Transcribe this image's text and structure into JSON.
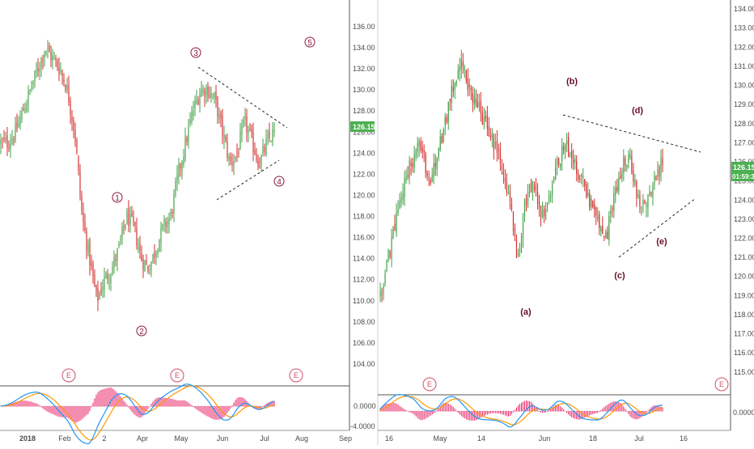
{
  "chart_data": [
    {
      "type": "candlestick",
      "title": "",
      "timeframe": "daily",
      "x_axis_labels": [
        "2018",
        "Feb",
        "2",
        "Apr",
        "May",
        "Jun",
        "Jul",
        "Aug",
        "Sep"
      ],
      "y_axis_labels": [
        "136.00",
        "134.00",
        "132.00",
        "130.00",
        "128.00",
        "126.00",
        "124.00",
        "122.00",
        "120.00",
        "118.00",
        "116.00",
        "114.00",
        "112.00",
        "110.00",
        "108.00",
        "106.00",
        "104.00"
      ],
      "ylim": [
        103,
        137.3
      ],
      "last_price_label": "126.15",
      "price_path": [
        125,
        125,
        126,
        128,
        130,
        132,
        134,
        133,
        132,
        130,
        126,
        118,
        114,
        110,
        112,
        113,
        115,
        118,
        117,
        114,
        113,
        115,
        117,
        118,
        122,
        125,
        128,
        130,
        130,
        129,
        126,
        123,
        124,
        127,
        125,
        123,
        125,
        126
      ],
      "annotations": [
        {
          "label": "1",
          "style": "circled"
        },
        {
          "label": "2",
          "style": "circled"
        },
        {
          "label": "3",
          "style": "circled"
        },
        {
          "label": "4",
          "style": "circled"
        },
        {
          "label": "5",
          "style": "circled"
        }
      ],
      "event_markers": [
        "E",
        "E",
        "E"
      ],
      "triangle": "contracting triangle, dashed trendlines",
      "indicator": {
        "name": "MACD",
        "y_axis_labels": [
          "0.0000",
          "-4.0000"
        ],
        "macd_line_color": "#2196f3",
        "signal_line_color": "#ff9800",
        "histogram_color": "#e91e63"
      }
    },
    {
      "type": "candlestick",
      "title": "",
      "timeframe": "intraday",
      "x_axis_labels": [
        "16",
        "May",
        "14",
        "Jun",
        "18",
        "Jul",
        "16"
      ],
      "y_axis_labels": [
        "134.00",
        "133.00",
        "132.00",
        "131.00",
        "130.00",
        "129.00",
        "128.00",
        "127.00",
        "126.00",
        "125.00",
        "124.00",
        "123.00",
        "122.00",
        "121.00",
        "120.00",
        "119.00",
        "118.00",
        "117.00",
        "116.00",
        "115.00"
      ],
      "ylim": [
        114.4,
        134.3
      ],
      "last_price_label": "126.15",
      "countdown_label": "01:59:33",
      "price_path": [
        119,
        121,
        123,
        125,
        126,
        127,
        125,
        126,
        128,
        130,
        131,
        130,
        129,
        128,
        127,
        126,
        124,
        121,
        124,
        125,
        123,
        124,
        126,
        127,
        126,
        125,
        124,
        123,
        122,
        124,
        126,
        126,
        124,
        124,
        125,
        126
      ],
      "annotations": [
        {
          "label": "(a)",
          "style": "letter"
        },
        {
          "label": "(b)",
          "style": "letter"
        },
        {
          "label": "(c)",
          "style": "letter"
        },
        {
          "label": "(d)",
          "style": "letter"
        },
        {
          "label": "(e)",
          "style": "letter"
        }
      ],
      "event_markers": [
        "E",
        "E"
      ],
      "triangle": "contracting triangle, dashed trendlines",
      "indicator": {
        "name": "MACD",
        "y_axis_labels": [
          "0.0000"
        ],
        "macd_line_color": "#2196f3",
        "signal_line_color": "#ff9800",
        "histogram_color": "#e91e63"
      }
    }
  ],
  "colors": {
    "up_candle": "#43a047",
    "down_candle": "#d32f2f",
    "annotation": "#8a1a3a",
    "price_tag": "#4caf50",
    "trendline": "#222222",
    "event": "#d0506a"
  }
}
